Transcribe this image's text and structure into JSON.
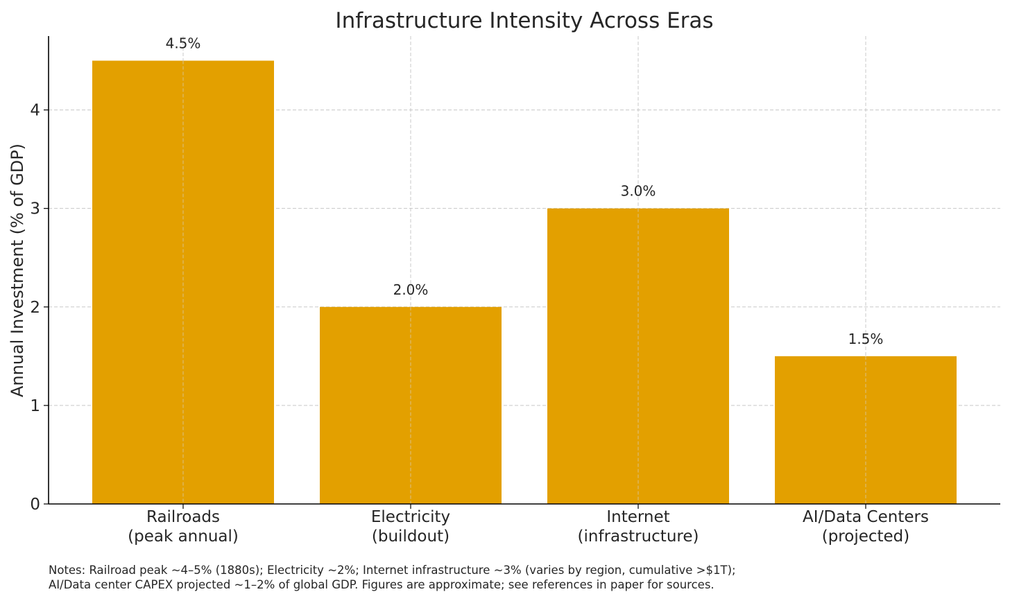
{
  "chart_data": {
    "type": "bar",
    "title": "Infrastructure Intensity Across Eras",
    "xlabel": "",
    "ylabel": "Annual Investment (% of GDP)",
    "categories": [
      [
        "Railroads",
        "(peak annual)"
      ],
      [
        "Electricity",
        "(buildout)"
      ],
      [
        "Internet",
        "(infrastructure)"
      ],
      [
        "AI/Data Centers",
        "(projected)"
      ]
    ],
    "values": [
      4.5,
      2.0,
      3.0,
      1.5
    ],
    "value_labels": [
      "4.5%",
      "2.0%",
      "3.0%",
      "1.5%"
    ],
    "ylim": [
      0,
      4.75
    ],
    "yticks": [
      0,
      1,
      2,
      3,
      4
    ],
    "grid": true,
    "bar_color": "#E3A000"
  },
  "notes": [
    "Notes: Railroad peak ~4–5% (1880s); Electricity ~2%; Internet infrastructure ~3% (varies by region, cumulative >$1T);",
    "AI/Data center CAPEX projected ~1–2% of global GDP. Figures are approximate; see references in paper for sources."
  ]
}
